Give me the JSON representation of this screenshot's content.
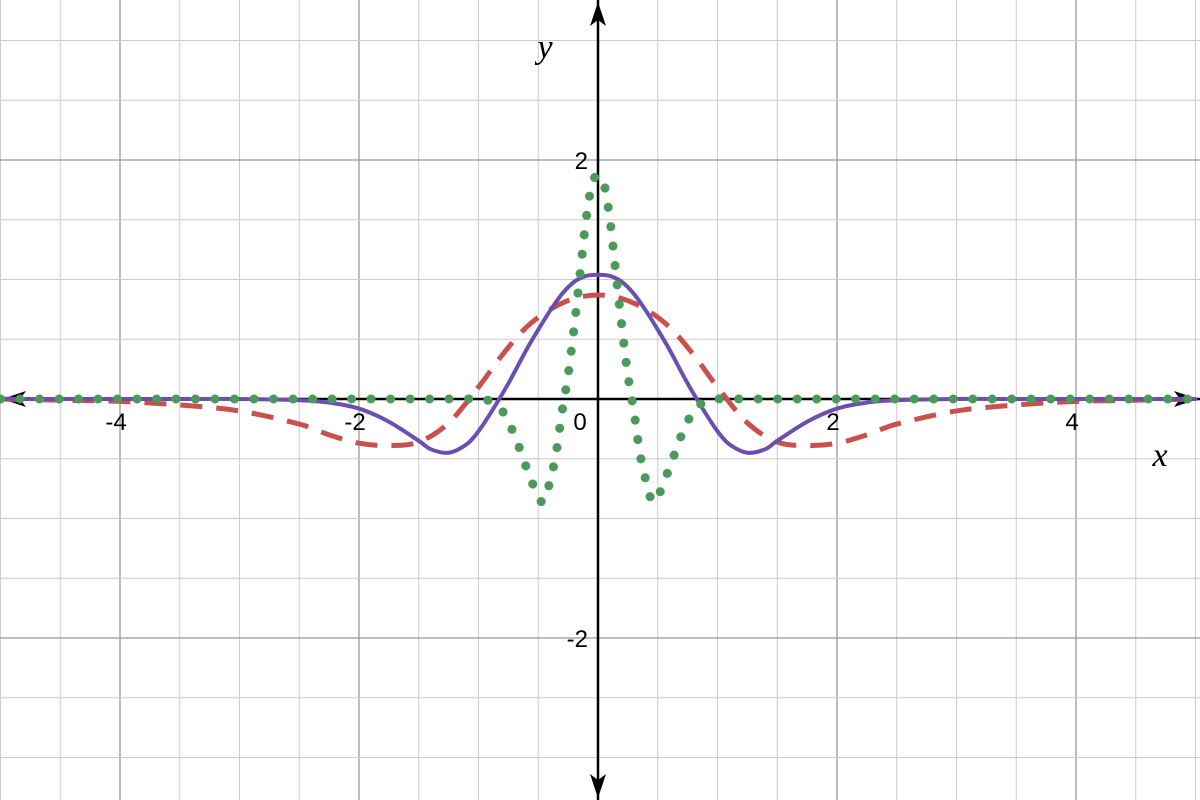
{
  "chart_data": {
    "type": "line",
    "title": "",
    "xlabel": "x",
    "ylabel": "y",
    "xlim": [
      -5,
      5
    ],
    "ylim": [
      -3.3,
      3.3
    ],
    "grid": true,
    "legend": "none",
    "x_ticks": [
      {
        "value": -4,
        "label": "-4"
      },
      {
        "value": -2,
        "label": "-2"
      },
      {
        "value": 0,
        "label": "0"
      },
      {
        "value": 2,
        "label": "2"
      },
      {
        "value": 4,
        "label": "4"
      }
    ],
    "y_ticks": [
      {
        "value": 2,
        "label": "2"
      },
      {
        "value": -2,
        "label": "-2"
      }
    ],
    "colors": {
      "minor_grid": "#cccccc",
      "major_grid": "#999999",
      "axis": "#000000"
    },
    "series": [
      {
        "style": "solid",
        "color": "#6a4fb0",
        "x": [
          -5,
          -4.5,
          -4,
          -3.5,
          -3,
          -2.5,
          -2.25,
          -2,
          -1.75,
          -1.5,
          -1.4,
          -1.25,
          -1.1,
          -1,
          -0.9,
          -0.75,
          -0.6,
          -0.5,
          -0.4,
          -0.3,
          -0.2,
          -0.1,
          0,
          0.1,
          0.2,
          0.3,
          0.4,
          0.5,
          0.6,
          0.75,
          0.9,
          1,
          1.1,
          1.25,
          1.4,
          1.5,
          1.75,
          2,
          2.25,
          2.5,
          3,
          3.5,
          4,
          4.5,
          5
        ],
        "y": [
          0,
          0,
          0,
          0,
          0,
          -0.01,
          -0.03,
          -0.08,
          -0.19,
          -0.35,
          -0.42,
          -0.45,
          -0.38,
          -0.27,
          -0.12,
          0.13,
          0.41,
          0.58,
          0.74,
          0.88,
          0.98,
          1.03,
          1.04,
          1.03,
          0.98,
          0.88,
          0.74,
          0.58,
          0.41,
          0.13,
          -0.12,
          -0.27,
          -0.38,
          -0.45,
          -0.42,
          -0.35,
          -0.19,
          -0.08,
          -0.03,
          -0.01,
          0,
          0,
          0,
          0,
          0
        ]
      },
      {
        "style": "dashed",
        "color": "#c9504d",
        "x": [
          -5,
          -4.5,
          -4,
          -3.5,
          -3,
          -2.5,
          -2.25,
          -2,
          -1.75,
          -1.5,
          -1.25,
          -1,
          -0.8,
          -0.6,
          -0.4,
          -0.2,
          0,
          0.2,
          0.4,
          0.6,
          0.8,
          1,
          1.25,
          1.5,
          1.75,
          2,
          2.25,
          2.5,
          3,
          3.5,
          4,
          4.5,
          5
        ],
        "y": [
          0,
          -0.01,
          -0.02,
          -0.05,
          -0.1,
          -0.21,
          -0.3,
          -0.37,
          -0.39,
          -0.36,
          -0.2,
          0.1,
          0.37,
          0.6,
          0.75,
          0.84,
          0.87,
          0.84,
          0.75,
          0.6,
          0.37,
          0.1,
          -0.2,
          -0.36,
          -0.39,
          -0.37,
          -0.3,
          -0.21,
          -0.1,
          -0.05,
          -0.02,
          -0.01,
          0
        ]
      },
      {
        "style": "dotted",
        "color": "#4b9a5b",
        "x": [
          -5,
          -4.5,
          -4,
          -3.5,
          -3,
          -2.5,
          -2,
          -1.5,
          -1.25,
          -1,
          -0.9,
          -0.8,
          -0.7,
          -0.6,
          -0.5,
          -0.45,
          -0.4,
          -0.35,
          -0.3,
          -0.25,
          -0.2,
          -0.15,
          -0.1,
          -0.05,
          0,
          0.05,
          0.1,
          0.15,
          0.2,
          0.25,
          0.3,
          0.35,
          0.4,
          0.45,
          0.5,
          0.6,
          0.7,
          0.8,
          0.9,
          1,
          1.25,
          1.5,
          2,
          2.5,
          3,
          3.5,
          4,
          4.5,
          5
        ],
        "y": [
          0,
          0,
          0,
          0,
          0,
          0,
          0,
          0,
          0,
          0,
          -0.02,
          -0.1,
          -0.3,
          -0.57,
          -0.82,
          -0.85,
          -0.68,
          -0.45,
          -0.1,
          0.2,
          0.6,
          1.05,
          1.5,
          1.8,
          1.87,
          1.8,
          1.5,
          1.05,
          0.6,
          0.2,
          -0.1,
          -0.45,
          -0.68,
          -0.85,
          -0.82,
          -0.57,
          -0.3,
          -0.1,
          -0.02,
          0,
          0,
          0,
          0,
          0,
          0,
          0,
          0,
          0,
          0
        ]
      }
    ]
  }
}
